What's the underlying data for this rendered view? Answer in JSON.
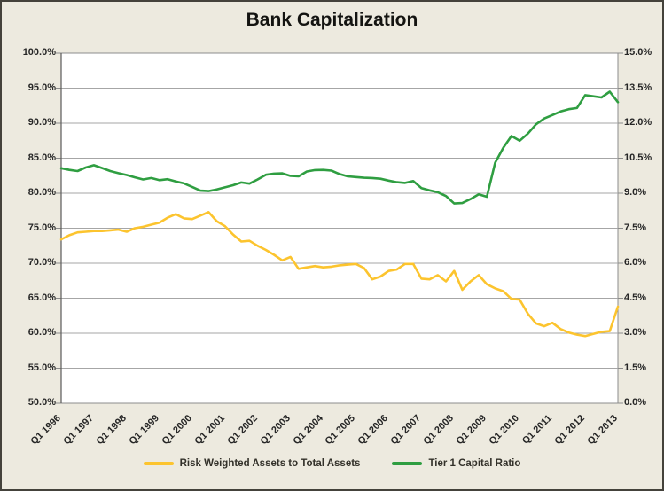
{
  "title": "Bank Capitalization",
  "colors": {
    "background": "#EDEADF",
    "plot_background": "#FFFFFF",
    "gridline": "#A6A6A6",
    "plot_border": "#8C8C8C",
    "left_axis_line": "#595959",
    "axis_text": "#262626",
    "rwa_line": "#FCC42E",
    "tier1_line": "#2F9E41",
    "frame_border": "#44423B"
  },
  "legend": {
    "rwa_label": "Risk Weighted Assets to Total Assets",
    "tier1_label": "Tier 1 Capital Ratio"
  },
  "chart_data": {
    "type": "line",
    "title": "Bank Capitalization",
    "grid": true,
    "legend_position": "bottom",
    "x_frequency": "quarterly",
    "x_tick_labels": [
      "Q1 1996",
      "Q1 1997",
      "Q1 1998",
      "Q1 1999",
      "Q1 2000",
      "Q1 2001",
      "Q1 2002",
      "Q1 2003",
      "Q1 2004",
      "Q1 2005",
      "Q1 2006",
      "Q1 2007",
      "Q1 2008",
      "Q1 2009",
      "Q1 2010",
      "Q1 2011",
      "Q1 2012",
      "Q1 2013"
    ],
    "categories": [
      "Q1 1996",
      "Q2 1996",
      "Q3 1996",
      "Q4 1996",
      "Q1 1997",
      "Q2 1997",
      "Q3 1997",
      "Q4 1997",
      "Q1 1998",
      "Q2 1998",
      "Q3 1998",
      "Q4 1998",
      "Q1 1999",
      "Q2 1999",
      "Q3 1999",
      "Q4 1999",
      "Q1 2000",
      "Q2 2000",
      "Q3 2000",
      "Q4 2000",
      "Q1 2001",
      "Q2 2001",
      "Q3 2001",
      "Q4 2001",
      "Q1 2002",
      "Q2 2002",
      "Q3 2002",
      "Q4 2002",
      "Q1 2003",
      "Q2 2003",
      "Q3 2003",
      "Q4 2003",
      "Q1 2004",
      "Q2 2004",
      "Q3 2004",
      "Q4 2004",
      "Q1 2005",
      "Q2 2005",
      "Q3 2005",
      "Q4 2005",
      "Q1 2006",
      "Q2 2006",
      "Q3 2006",
      "Q4 2006",
      "Q1 2007",
      "Q2 2007",
      "Q3 2007",
      "Q4 2007",
      "Q1 2008",
      "Q2 2008",
      "Q3 2008",
      "Q4 2008",
      "Q1 2009",
      "Q2 2009",
      "Q3 2009",
      "Q4 2009",
      "Q1 2010",
      "Q2 2010",
      "Q3 2010",
      "Q4 2010",
      "Q1 2011",
      "Q2 2011",
      "Q3 2011",
      "Q4 2011",
      "Q1 2012",
      "Q2 2012",
      "Q3 2012",
      "Q4 2012",
      "Q1 2013"
    ],
    "left_axis": {
      "min": 50,
      "max": 100,
      "step": 5,
      "format": "percent",
      "tick_labels": [
        "100.0%",
        "95.0%",
        "90.0%",
        "85.0%",
        "80.0%",
        "75.0%",
        "70.0%",
        "65.0%",
        "60.0%",
        "55.0%",
        "50.0%"
      ]
    },
    "right_axis": {
      "min": 0,
      "max": 15,
      "step": 1.5,
      "format": "percent",
      "tick_labels": [
        "15.0%",
        "13.5%",
        "12.0%",
        "10.5%",
        "9.0%",
        "7.5%",
        "6.0%",
        "4.5%",
        "3.0%",
        "1.5%",
        "0.0%"
      ]
    },
    "series": [
      {
        "name": "Risk Weighted Assets to Total Assets",
        "axis": "left",
        "color": "#FCC42E",
        "values": [
          73.4,
          74.0,
          74.4,
          74.5,
          74.6,
          74.6,
          74.7,
          74.8,
          74.5,
          75.0,
          75.2,
          75.5,
          75.8,
          76.5,
          77.0,
          76.4,
          76.3,
          76.8,
          77.3,
          76.0,
          75.3,
          74.1,
          73.1,
          73.2,
          72.5,
          71.9,
          71.2,
          70.4,
          70.9,
          69.2,
          69.4,
          69.6,
          69.4,
          69.5,
          69.7,
          69.8,
          69.9,
          69.3,
          67.7,
          68.1,
          68.9,
          69.1,
          69.9,
          69.9,
          67.8,
          67.7,
          68.3,
          67.4,
          68.9,
          66.2,
          67.4,
          68.3,
          67.0,
          66.4,
          66.0,
          64.9,
          64.8,
          62.8,
          61.4,
          61.0,
          61.5,
          60.6,
          60.1,
          59.8,
          59.6,
          59.9,
          60.2,
          60.3,
          63.8
        ]
      },
      {
        "name": "Tier 1 Capital Ratio",
        "axis": "right",
        "color": "#2F9E41",
        "values": [
          10.07,
          10.0,
          9.95,
          10.1,
          10.2,
          10.08,
          9.95,
          9.86,
          9.78,
          9.68,
          9.59,
          9.65,
          9.56,
          9.6,
          9.5,
          9.42,
          9.27,
          9.11,
          9.09,
          9.16,
          9.25,
          9.34,
          9.46,
          9.41,
          9.59,
          9.79,
          9.84,
          9.85,
          9.74,
          9.72,
          9.93,
          9.99,
          10.0,
          9.97,
          9.82,
          9.72,
          9.69,
          9.66,
          9.65,
          9.62,
          9.54,
          9.47,
          9.44,
          9.52,
          9.22,
          9.12,
          9.04,
          8.88,
          8.56,
          8.58,
          8.75,
          8.95,
          8.85,
          10.3,
          10.95,
          11.45,
          11.25,
          11.55,
          11.95,
          12.2,
          12.35,
          12.5,
          12.6,
          12.65,
          13.2,
          13.15,
          13.1,
          13.35,
          12.9
        ]
      }
    ]
  }
}
